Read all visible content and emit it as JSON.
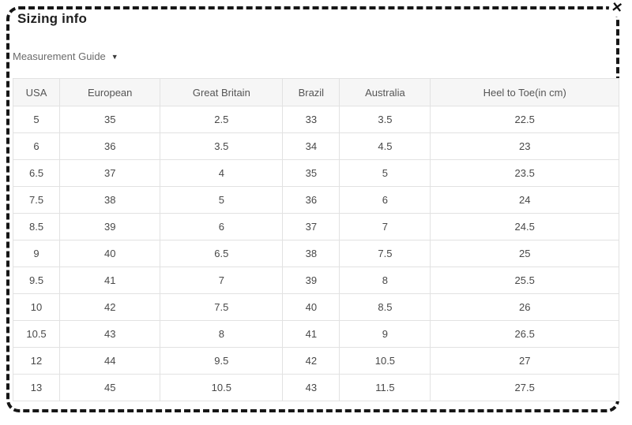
{
  "dialog": {
    "title": "Sizing info",
    "close_icon": "✕"
  },
  "measurement_guide": {
    "label": "Measurement Guide",
    "dropdown_icon": "▼"
  },
  "table": {
    "headers": [
      "USA",
      "European",
      "Great Britain",
      "Brazil",
      "Australia",
      "Heel to Toe(in cm)"
    ],
    "rows": [
      [
        "5",
        "35",
        "2.5",
        "33",
        "3.5",
        "22.5"
      ],
      [
        "6",
        "36",
        "3.5",
        "34",
        "4.5",
        "23"
      ],
      [
        "6.5",
        "37",
        "4",
        "35",
        "5",
        "23.5"
      ],
      [
        "7.5",
        "38",
        "5",
        "36",
        "6",
        "24"
      ],
      [
        "8.5",
        "39",
        "6",
        "37",
        "7",
        "24.5"
      ],
      [
        "9",
        "40",
        "6.5",
        "38",
        "7.5",
        "25"
      ],
      [
        "9.5",
        "41",
        "7",
        "39",
        "8",
        "25.5"
      ],
      [
        "10",
        "42",
        "7.5",
        "40",
        "8.5",
        "26"
      ],
      [
        "10.5",
        "43",
        "8",
        "41",
        "9",
        "26.5"
      ],
      [
        "12",
        "44",
        "9.5",
        "42",
        "10.5",
        "27"
      ],
      [
        "13",
        "45",
        "10.5",
        "43",
        "11.5",
        "27.5"
      ]
    ]
  },
  "colors": {
    "dashed_border": "#161616",
    "table_border": "#e2e2e2",
    "header_background": "#f6f6f6",
    "header_text": "#555555",
    "cell_text": "#484848",
    "title_text": "#1f1f1f",
    "guide_text": "#6b6b6b"
  }
}
